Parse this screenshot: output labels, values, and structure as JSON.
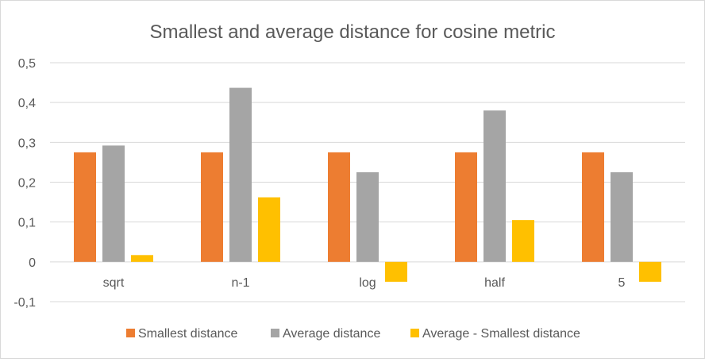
{
  "chart_data": {
    "type": "bar",
    "title": "Smallest and average distance for cosine metric",
    "xlabel": "",
    "ylabel": "",
    "categories": [
      "sqrt",
      "n-1",
      "log",
      "half",
      "5"
    ],
    "series": [
      {
        "name": "Smallest distance",
        "color": "#ED7D31",
        "values": [
          0.275,
          0.275,
          0.275,
          0.275,
          0.275
        ]
      },
      {
        "name": "Average distance",
        "color": "#A5A5A5",
        "values": [
          0.292,
          0.437,
          0.225,
          0.38,
          0.225
        ]
      },
      {
        "name": "Average - Smallest distance",
        "color": "#FFC000",
        "values": [
          0.017,
          0.162,
          -0.05,
          0.105,
          -0.05
        ]
      }
    ],
    "ylim": [
      -0.1,
      0.5
    ],
    "yticks": [
      "-0,1",
      "0",
      "0,1",
      "0,2",
      "0,3",
      "0,4",
      "0,5"
    ],
    "grid": true,
    "legend_position": "bottom"
  }
}
